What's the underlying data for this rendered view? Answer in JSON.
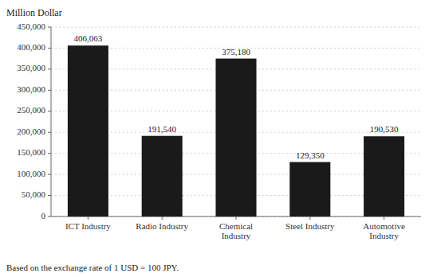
{
  "chart_data": {
    "type": "bar",
    "ylabel": "Million Dollar",
    "footnote": "Based on the exchange rate of 1 USD = 100 JPY.",
    "categories": [
      "ICT Industry",
      "Radio Industry",
      "Chemical\nIndustry",
      "Steel Industry",
      "Automotive\nIndustry"
    ],
    "values": [
      406063,
      191540,
      375180,
      129350,
      190530
    ],
    "value_labels": [
      "406,063",
      "191,540",
      "375,180",
      "129,350",
      "190,530"
    ],
    "data_labels": true,
    "color": "#1a1a1a",
    "ylim": [
      0,
      450000
    ],
    "yticks": [
      0,
      {
        "value": 50000,
        "label": "50,000"
      },
      {
        "value": 100000,
        "label": "100,000"
      },
      {
        "value": 150000,
        "label": "150,000"
      },
      {
        "value": 200000,
        "label": "200,000"
      },
      {
        "value": 250000,
        "label": "250,000"
      },
      {
        "value": 300000,
        "label": "300,000"
      },
      {
        "value": 350000,
        "label": "350,000"
      },
      {
        "value": 400000,
        "label": "400,000"
      },
      {
        "value": 450000,
        "label": "450,000"
      }
    ],
    "grid": true
  }
}
